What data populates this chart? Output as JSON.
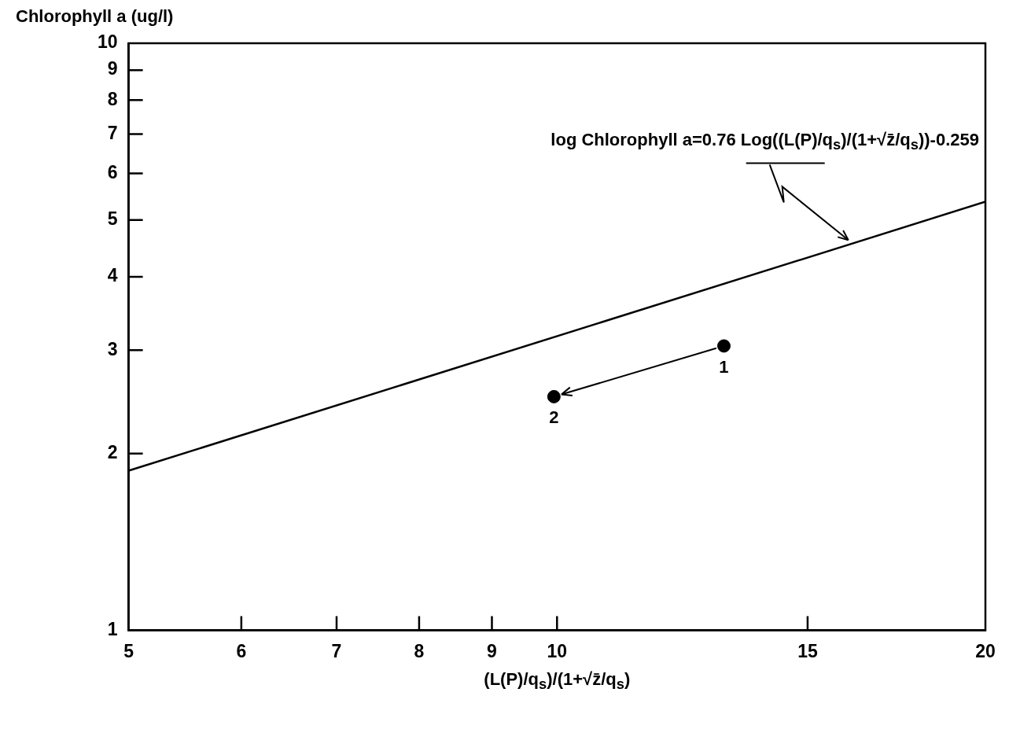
{
  "chart_data": {
    "type": "scatter",
    "xlabel": "(L(P)/q$_{s}$)/(1+√z̄/q$_{s}$)",
    "ylabel": "Chlorophyll a (ug/l)",
    "log": "xy",
    "xlim": [
      5,
      20
    ],
    "xticks": [
      5,
      6,
      7,
      8,
      9,
      10,
      15,
      20
    ],
    "ylim": [
      1,
      10
    ],
    "yticks": [
      1,
      2,
      3,
      4,
      5,
      6,
      7,
      8,
      9,
      10
    ],
    "grid": false,
    "legend": false,
    "marker": "circle",
    "series": [
      {
        "type": "line",
        "x": [
          5,
          20
        ],
        "values": [
          1.87,
          5.37
        ],
        "color": "#000000",
        "marker": "none"
      },
      {
        "x": [
          13.1,
          9.95
        ],
        "values": [
          3.05,
          2.5
        ],
        "color": "#000000"
      }
    ],
    "annotations": [
      "log Chlorophyll a=0.76 Log((L(P)/q$_{s}$)/(1+√z̄/q$_{s}$))-0.259",
      {
        "text": "1",
        "x": 13.1,
        "y": 3.05
      },
      {
        "text": "2",
        "x": 9.95,
        "y": 2.5
      }
    ]
  }
}
